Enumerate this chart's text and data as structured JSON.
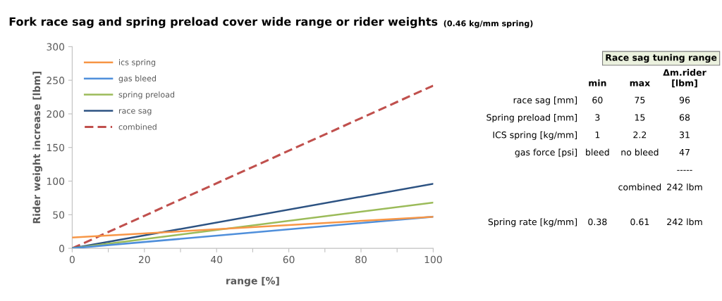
{
  "chart_data": [
    {
      "type": "line",
      "title": "Fork race sag and spring preload cover wide range or rider weights",
      "subtitle": "(0.46 kg/mm spring)",
      "xlabel": "range [%]",
      "ylabel": "Rider weight increase [lbm]",
      "x": [
        0,
        100
      ],
      "series": [
        {
          "name": "ics spring",
          "color": "#f79646",
          "values": [
            16,
            47
          ]
        },
        {
          "name": "gas bleed",
          "color": "#4f8fdb",
          "values": [
            0,
            47
          ]
        },
        {
          "name": "spring preload",
          "color": "#9bbb59",
          "values": [
            0,
            68
          ]
        },
        {
          "name": "race sag",
          "color": "#2c5282",
          "values": [
            0,
            96
          ]
        },
        {
          "name": "combined",
          "color": "#c0504d",
          "values": [
            0,
            242
          ],
          "line_style": "dashed"
        }
      ],
      "xlim": [
        0,
        100
      ],
      "ylim": [
        0,
        300
      ],
      "xticks": [
        0,
        {
          "value": 10,
          "label": null
        },
        20,
        {
          "value": 30,
          "label": null
        },
        40,
        {
          "value": 50,
          "label": null
        },
        60,
        {
          "value": 70,
          "label": null
        },
        80,
        {
          "value": 90,
          "label": null
        },
        100
      ],
      "yticks": [
        0,
        50,
        100,
        150,
        200,
        250,
        300
      ],
      "grid": false,
      "legend": "top left",
      "marker": "none",
      "line_style": "solid"
    },
    {
      "type": "other",
      "title": "Race sag tuning range",
      "categories": [
        "min",
        "max",
        "Δm.rider\n[lbm]"
      ],
      "y_categories": [
        "race sag [mm]",
        "Spring preload [mm]",
        "ICS spring [kg/mm]",
        "gas force [psi]",
        null,
        null,
        null,
        "Spring rate [kg/mm]"
      ],
      "cell_labels": [
        [
          "60",
          "75",
          "96"
        ],
        [
          "3",
          "15",
          "68"
        ],
        [
          "1",
          "2.2",
          "31"
        ],
        [
          "bleed",
          "no bleed",
          "47"
        ],
        [
          null,
          null,
          "-----"
        ],
        [
          null,
          "combined",
          "242 lbm"
        ],
        [
          null,
          null,
          null
        ],
        [
          "0.38",
          "0.61",
          "242 lbm"
        ]
      ]
    }
  ]
}
